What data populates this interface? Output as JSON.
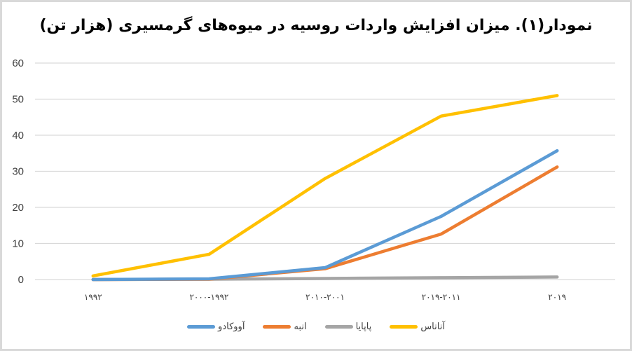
{
  "chart_data": {
    "type": "line",
    "title": "نمودار(۱). میزان افزایش واردات روسیه در میوه‌های گرمسیری (هزار تن)",
    "xlabel": "",
    "ylabel": "",
    "ylim": [
      0,
      60
    ],
    "yticks": [
      0,
      10,
      20,
      30,
      40,
      50,
      60
    ],
    "grid": true,
    "legend_position": "bottom",
    "categories": [
      "۱۹۹۲",
      "۲۰۰۰-۱۹۹۲",
      "۲۰۱۰-۲۰۰۱",
      "۲۰۱۹-۲۰۱۱",
      "۲۰۱۹"
    ],
    "series": [
      {
        "name": "آناناس",
        "color": "#FFC000",
        "values": [
          1,
          7,
          28,
          45.3,
          51
        ]
      },
      {
        "name": "پاپایا",
        "color": "#A5A5A5",
        "values": [
          0,
          0.1,
          0.3,
          0.5,
          0.7
        ]
      },
      {
        "name": "انبه",
        "color": "#ED7D31",
        "values": [
          0,
          0.1,
          3,
          12.6,
          31.2
        ]
      },
      {
        "name": "آووکادو",
        "color": "#5B9BD5",
        "values": [
          0,
          0.2,
          3.3,
          17.5,
          35.7
        ]
      }
    ]
  },
  "legend_order": [
    "آناناس",
    "پاپایا",
    "انبه",
    "آووکادو"
  ]
}
